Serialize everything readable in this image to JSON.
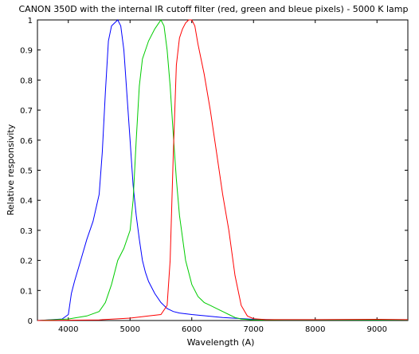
{
  "chart_data": {
    "type": "line",
    "title": "CANON 350D with the internal IR cutoff filter (red, green and bleue pixels) - 5000 K lamp",
    "xlabel": "Wavelength (A)",
    "ylabel": "Relative responsivity",
    "xlim": [
      3500,
      9500
    ],
    "ylim": [
      0,
      1.0
    ],
    "xticks": [
      4000,
      5000,
      6000,
      7000,
      8000,
      9000
    ],
    "yticks": [
      0,
      0.1,
      0.2,
      0.3,
      0.4,
      0.5,
      0.6,
      0.7,
      0.8,
      0.9,
      1
    ],
    "grid": false,
    "legend": "none",
    "series": [
      {
        "color": "#0000ff",
        "x": [
          3500,
          3900,
          4000,
          4050,
          4100,
          4200,
          4300,
          4400,
          4500,
          4550,
          4600,
          4650,
          4700,
          4750,
          4800,
          4850,
          4900,
          4950,
          5000,
          5050,
          5100,
          5150,
          5200,
          5250,
          5300,
          5400,
          5500,
          5600,
          5700,
          5800,
          6000,
          6500,
          7000,
          7500,
          8000,
          9000,
          9500
        ],
        "y": [
          0.0,
          0.005,
          0.02,
          0.09,
          0.13,
          0.2,
          0.27,
          0.33,
          0.42,
          0.56,
          0.76,
          0.93,
          0.98,
          0.99,
          1.0,
          0.98,
          0.9,
          0.75,
          0.6,
          0.45,
          0.35,
          0.27,
          0.2,
          0.16,
          0.13,
          0.09,
          0.06,
          0.04,
          0.03,
          0.025,
          0.02,
          0.01,
          0.004,
          0.002,
          0.002,
          0.002,
          0.002
        ]
      },
      {
        "color": "#00cc00",
        "x": [
          3500,
          4000,
          4300,
          4500,
          4600,
          4700,
          4800,
          4900,
          5000,
          5050,
          5100,
          5150,
          5200,
          5300,
          5400,
          5500,
          5550,
          5600,
          5650,
          5700,
          5750,
          5800,
          5900,
          6000,
          6100,
          6200,
          6300,
          6400,
          6500,
          6600,
          6700,
          6800,
          7000,
          9500
        ],
        "y": [
          0.0,
          0.005,
          0.015,
          0.03,
          0.06,
          0.12,
          0.2,
          0.24,
          0.3,
          0.4,
          0.6,
          0.78,
          0.87,
          0.93,
          0.97,
          1.0,
          0.98,
          0.9,
          0.78,
          0.62,
          0.47,
          0.35,
          0.2,
          0.12,
          0.08,
          0.06,
          0.05,
          0.04,
          0.03,
          0.02,
          0.01,
          0.005,
          0.002,
          0.002
        ]
      },
      {
        "color": "#ff0000",
        "x": [
          3500,
          4500,
          5000,
          5300,
          5500,
          5600,
          5650,
          5700,
          5750,
          5800,
          5850,
          5900,
          5950,
          6000,
          6050,
          6100,
          6150,
          6200,
          6300,
          6400,
          6500,
          6600,
          6700,
          6800,
          6900,
          7000,
          7200,
          8000,
          9000,
          9500
        ],
        "y": [
          0.0,
          0.002,
          0.008,
          0.015,
          0.02,
          0.05,
          0.2,
          0.55,
          0.85,
          0.94,
          0.97,
          0.99,
          1.0,
          1.0,
          0.98,
          0.92,
          0.87,
          0.82,
          0.7,
          0.56,
          0.42,
          0.3,
          0.15,
          0.05,
          0.015,
          0.006,
          0.003,
          0.003,
          0.004,
          0.003
        ]
      }
    ]
  }
}
